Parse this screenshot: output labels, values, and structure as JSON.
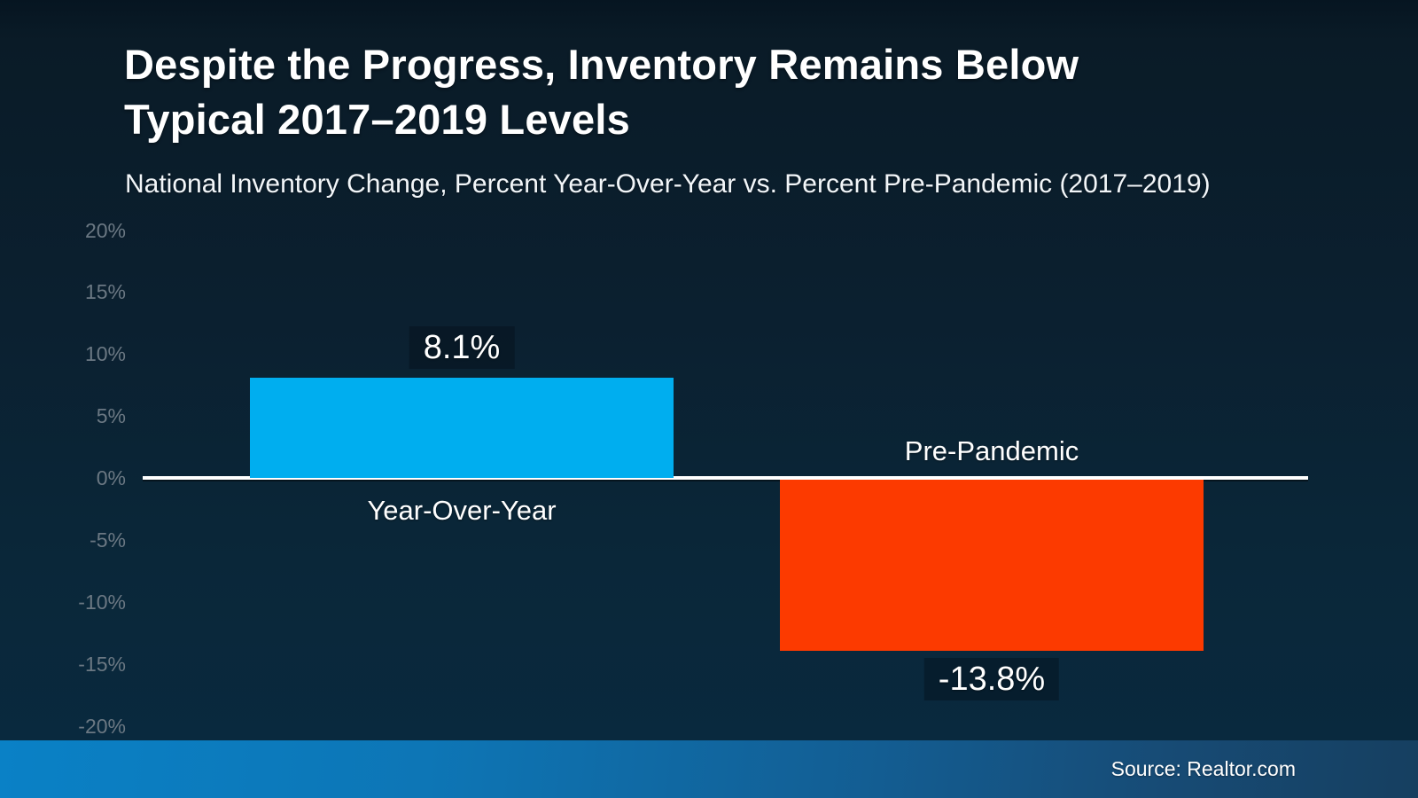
{
  "header": {
    "title_line1": "Despite the Progress, Inventory Remains Below",
    "title_line2": "Typical 2017–2019 Levels",
    "subtitle": "National Inventory Change, Percent Year-Over-Year vs. Percent Pre-Pandemic (2017–2019)"
  },
  "footer": {
    "source": "Source: Realtor.com"
  },
  "colors": {
    "background_top": "#0a1b27",
    "background_bottom": "#092b40",
    "bar_positive": "#00aeef",
    "bar_negative": "#fc3a00",
    "axis_line": "#ffffff",
    "tick_label": "#6b7883",
    "footer_band_left": "#0a81c6",
    "footer_band_right": "#163f60"
  },
  "chart_data": {
    "type": "bar",
    "title": "Despite the Progress, Inventory Remains Below Typical 2017–2019 Levels",
    "subtitle": "National Inventory Change, Percent Year-Over-Year vs. Percent Pre-Pandemic (2017–2019)",
    "categories": [
      "Year-Over-Year",
      "Pre-Pandemic"
    ],
    "values": [
      8.1,
      -13.8
    ],
    "value_labels": [
      "8.1%",
      "-13.8%"
    ],
    "bar_colors": [
      "#00aeef",
      "#fc3a00"
    ],
    "ylim": [
      -20,
      20
    ],
    "ytick_values": [
      20,
      15,
      10,
      5,
      0,
      -5,
      -10,
      -15,
      -20
    ],
    "ytick_labels": [
      "20%",
      "15%",
      "10%",
      "5%",
      "0%",
      "-5%",
      "-10%",
      "-15%",
      "-20%"
    ],
    "grid": false,
    "zero_line": true,
    "legend": "none",
    "source": "Source: Realtor.com"
  }
}
